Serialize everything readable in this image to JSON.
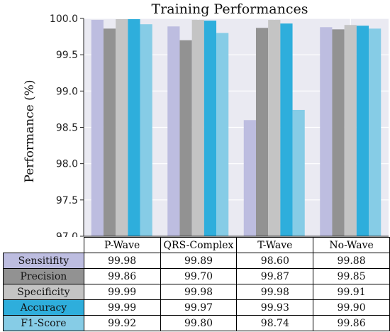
{
  "chart_data": {
    "type": "bar",
    "title": "Training Performances",
    "ylabel": "Performance (%)",
    "xlabel": "",
    "ylim": [
      97.0,
      100.0
    ],
    "yticks": [
      "97.0",
      "97.5",
      "98.0",
      "98.5",
      "99.0",
      "99.5",
      "100.0"
    ],
    "grid": true,
    "categories": [
      "P-Wave",
      "QRS-Complex",
      "T-Wave",
      "No-Wave"
    ],
    "series": [
      {
        "name": "Sensitifity",
        "color": "#bdbde0",
        "values": [
          99.98,
          99.89,
          98.6,
          99.88
        ],
        "labels": [
          "99.98",
          "99.89",
          "98.60",
          "99.88"
        ]
      },
      {
        "name": "Precision",
        "color": "#929292",
        "values": [
          99.86,
          99.7,
          99.87,
          99.85
        ],
        "labels": [
          "99.86",
          "99.70",
          "99.87",
          "99.85"
        ]
      },
      {
        "name": "Specificity",
        "color": "#c4c4c4",
        "values": [
          99.99,
          99.98,
          99.98,
          99.91
        ],
        "labels": [
          "99.99",
          "99.98",
          "99.98",
          "99.91"
        ]
      },
      {
        "name": "Accuracy",
        "color": "#2eaedc",
        "values": [
          99.99,
          99.97,
          99.93,
          99.9
        ],
        "labels": [
          "99.99",
          "99.97",
          "99.93",
          "99.90"
        ]
      },
      {
        "name": "F1-Score",
        "color": "#86cce6",
        "values": [
          99.92,
          99.8,
          98.74,
          99.86
        ],
        "labels": [
          "99.92",
          "99.80",
          "98.74",
          "99.86"
        ]
      }
    ]
  }
}
